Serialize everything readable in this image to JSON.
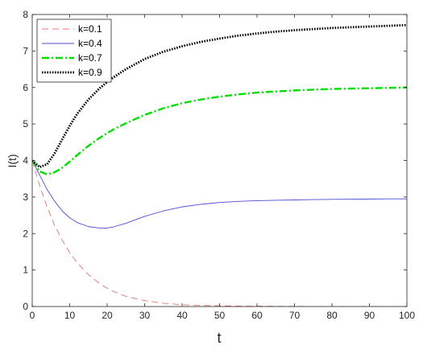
{
  "chart_data": {
    "type": "line",
    "title": "",
    "xlabel": "t",
    "ylabel": "I(t)",
    "xlim": [
      0,
      100
    ],
    "ylim": [
      0,
      8
    ],
    "xticks": [
      "0",
      "10",
      "20",
      "30",
      "40",
      "50",
      "60",
      "70",
      "80",
      "90",
      "100"
    ],
    "yticks": [
      "0",
      "1",
      "2",
      "3",
      "4",
      "5",
      "6",
      "7",
      "8"
    ],
    "grid": false,
    "legend_position": "top-left",
    "x": [
      0,
      2,
      4,
      6,
      8,
      10,
      12,
      15,
      18,
      20,
      22,
      25,
      30,
      35,
      40,
      45,
      50,
      55,
      60,
      65,
      70,
      75,
      80,
      85,
      90,
      95,
      100
    ],
    "series": [
      {
        "name": "k=0.1",
        "color": "#e8746f",
        "style": "dashed",
        "values": [
          4.0,
          3.3,
          2.72,
          2.22,
          1.82,
          1.48,
          1.2,
          0.87,
          0.63,
          0.5,
          0.4,
          0.28,
          0.16,
          0.09,
          0.05,
          0.03,
          0.02,
          0.01,
          0.01,
          0.005,
          0.003,
          0.002,
          0.001,
          0.001,
          0.001,
          0.0,
          0.0
        ]
      },
      {
        "name": "k=0.4",
        "color": "#4b4bd6",
        "style": "solid",
        "values": [
          4.0,
          3.6,
          3.2,
          2.88,
          2.62,
          2.43,
          2.3,
          2.19,
          2.15,
          2.15,
          2.19,
          2.28,
          2.47,
          2.62,
          2.73,
          2.8,
          2.85,
          2.88,
          2.9,
          2.91,
          2.92,
          2.93,
          2.935,
          2.94,
          2.945,
          2.948,
          2.95
        ]
      },
      {
        "name": "k=0.7",
        "color": "#00e000",
        "style": "dashdot",
        "values": [
          4.0,
          3.7,
          3.62,
          3.68,
          3.8,
          3.97,
          4.15,
          4.4,
          4.62,
          4.75,
          4.87,
          5.02,
          5.25,
          5.43,
          5.57,
          5.67,
          5.75,
          5.81,
          5.86,
          5.89,
          5.92,
          5.94,
          5.96,
          5.97,
          5.98,
          5.99,
          6.0
        ]
      },
      {
        "name": "k=0.9",
        "color": "#000000",
        "style": "dotted",
        "values": [
          4.0,
          3.82,
          3.9,
          4.2,
          4.58,
          4.95,
          5.28,
          5.67,
          5.98,
          6.15,
          6.3,
          6.5,
          6.78,
          6.98,
          7.13,
          7.25,
          7.34,
          7.42,
          7.48,
          7.53,
          7.57,
          7.6,
          7.63,
          7.65,
          7.67,
          7.69,
          7.71
        ]
      }
    ]
  }
}
